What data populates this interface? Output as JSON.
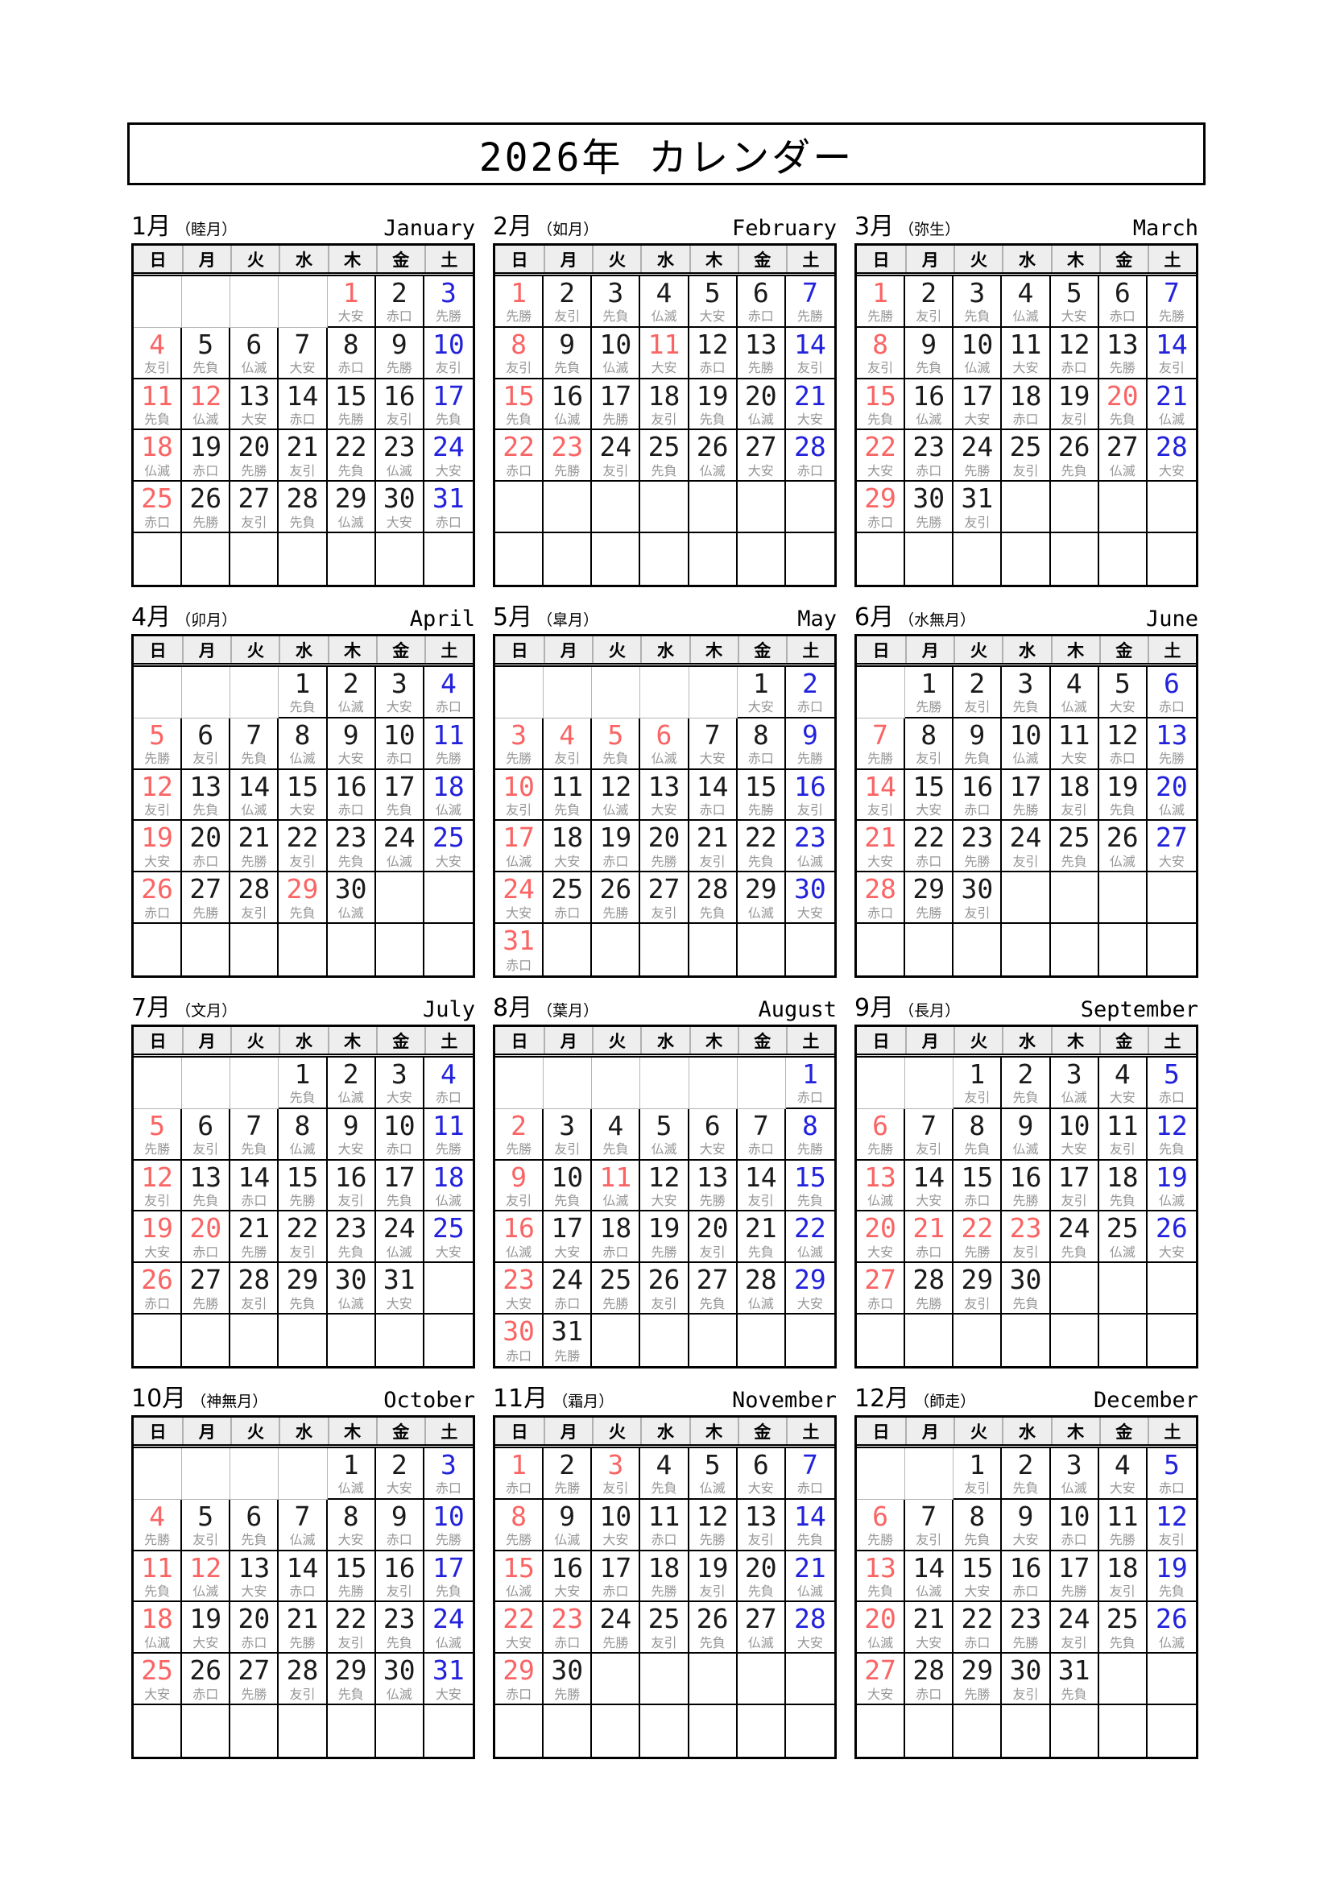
{
  "title": "2026年 カレンダー",
  "colors": {
    "red": "#fa6464",
    "blue": "#2222dd",
    "rokuyo_gray": "#969696",
    "header_bg": "#eeeeee",
    "border": "#000000"
  },
  "day_headers": [
    "日",
    "月",
    "火",
    "水",
    "木",
    "金",
    "土"
  ],
  "weeks_per_month": 6,
  "months": [
    {
      "jp": "1月",
      "wafu": "（睦月）",
      "en": "January",
      "first_dow": 4,
      "days": 31,
      "holidays": [
        1,
        12
      ],
      "rokuyo": [
        "大安",
        "赤口",
        "先勝",
        "友引",
        "先負",
        "仏滅",
        "大安",
        "赤口",
        "先勝",
        "友引",
        "先負",
        "仏滅",
        "大安",
        "赤口",
        "先勝",
        "友引",
        "先負",
        "仏滅",
        "赤口",
        "先勝",
        "友引",
        "先負",
        "仏滅",
        "大安",
        "赤口",
        "先勝",
        "友引",
        "先負",
        "仏滅",
        "大安",
        "赤口"
      ]
    },
    {
      "jp": "2月",
      "wafu": "（如月）",
      "en": "February",
      "first_dow": 0,
      "days": 28,
      "holidays": [
        11,
        23
      ],
      "rokuyo": [
        "先勝",
        "友引",
        "先負",
        "仏滅",
        "大安",
        "赤口",
        "先勝",
        "友引",
        "先負",
        "仏滅",
        "大安",
        "赤口",
        "先勝",
        "友引",
        "先負",
        "仏滅",
        "先勝",
        "友引",
        "先負",
        "仏滅",
        "大安",
        "赤口",
        "先勝",
        "友引",
        "先負",
        "仏滅",
        "大安",
        "赤口"
      ]
    },
    {
      "jp": "3月",
      "wafu": "（弥生）",
      "en": "March",
      "first_dow": 0,
      "days": 31,
      "holidays": [
        20
      ],
      "rokuyo": [
        "先勝",
        "友引",
        "先負",
        "仏滅",
        "大安",
        "赤口",
        "先勝",
        "友引",
        "先負",
        "仏滅",
        "大安",
        "赤口",
        "先勝",
        "友引",
        "先負",
        "仏滅",
        "大安",
        "赤口",
        "友引",
        "先負",
        "仏滅",
        "大安",
        "赤口",
        "先勝",
        "友引",
        "先負",
        "仏滅",
        "大安",
        "赤口",
        "先勝",
        "友引"
      ]
    },
    {
      "jp": "4月",
      "wafu": "（卯月）",
      "en": "April",
      "first_dow": 3,
      "days": 30,
      "holidays": [
        29
      ],
      "rokuyo": [
        "先負",
        "仏滅",
        "大安",
        "赤口",
        "先勝",
        "友引",
        "先負",
        "仏滅",
        "大安",
        "赤口",
        "先勝",
        "友引",
        "先負",
        "仏滅",
        "大安",
        "赤口",
        "先負",
        "仏滅",
        "大安",
        "赤口",
        "先勝",
        "友引",
        "先負",
        "仏滅",
        "大安",
        "赤口",
        "先勝",
        "友引",
        "先負",
        "仏滅"
      ]
    },
    {
      "jp": "5月",
      "wafu": "（皐月）",
      "en": "May",
      "first_dow": 5,
      "days": 31,
      "holidays": [
        3,
        4,
        5,
        6
      ],
      "rokuyo": [
        "大安",
        "赤口",
        "先勝",
        "友引",
        "先負",
        "仏滅",
        "大安",
        "赤口",
        "先勝",
        "友引",
        "先負",
        "仏滅",
        "大安",
        "赤口",
        "先勝",
        "友引",
        "仏滅",
        "大安",
        "赤口",
        "先勝",
        "友引",
        "先負",
        "仏滅",
        "大安",
        "赤口",
        "先勝",
        "友引",
        "先負",
        "仏滅",
        "大安",
        "赤口"
      ]
    },
    {
      "jp": "6月",
      "wafu": "（水無月）",
      "en": "June",
      "first_dow": 1,
      "days": 30,
      "holidays": [],
      "rokuyo": [
        "先勝",
        "友引",
        "先負",
        "仏滅",
        "大安",
        "赤口",
        "先勝",
        "友引",
        "先負",
        "仏滅",
        "大安",
        "赤口",
        "先勝",
        "友引",
        "大安",
        "赤口",
        "先勝",
        "友引",
        "先負",
        "仏滅",
        "大安",
        "赤口",
        "先勝",
        "友引",
        "先負",
        "仏滅",
        "大安",
        "赤口",
        "先勝",
        "友引"
      ]
    },
    {
      "jp": "7月",
      "wafu": "（文月）",
      "en": "July",
      "first_dow": 3,
      "days": 31,
      "holidays": [
        20
      ],
      "rokuyo": [
        "先負",
        "仏滅",
        "大安",
        "赤口",
        "先勝",
        "友引",
        "先負",
        "仏滅",
        "大安",
        "赤口",
        "先勝",
        "友引",
        "先負",
        "赤口",
        "先勝",
        "友引",
        "先負",
        "仏滅",
        "大安",
        "赤口",
        "先勝",
        "友引",
        "先負",
        "仏滅",
        "大安",
        "赤口",
        "先勝",
        "友引",
        "先負",
        "仏滅",
        "大安"
      ]
    },
    {
      "jp": "8月",
      "wafu": "（葉月）",
      "en": "August",
      "first_dow": 6,
      "days": 31,
      "holidays": [
        11
      ],
      "rokuyo": [
        "赤口",
        "先勝",
        "友引",
        "先負",
        "仏滅",
        "大安",
        "赤口",
        "先勝",
        "友引",
        "先負",
        "仏滅",
        "大安",
        "先勝",
        "友引",
        "先負",
        "仏滅",
        "大安",
        "赤口",
        "先勝",
        "友引",
        "先負",
        "仏滅",
        "大安",
        "赤口",
        "先勝",
        "友引",
        "先負",
        "仏滅",
        "大安",
        "赤口",
        "先勝"
      ]
    },
    {
      "jp": "9月",
      "wafu": "（長月）",
      "en": "September",
      "first_dow": 2,
      "days": 30,
      "holidays": [
        21,
        22,
        23
      ],
      "rokuyo": [
        "友引",
        "先負",
        "仏滅",
        "大安",
        "赤口",
        "先勝",
        "友引",
        "先負",
        "仏滅",
        "大安",
        "友引",
        "先負",
        "仏滅",
        "大安",
        "赤口",
        "先勝",
        "友引",
        "先負",
        "仏滅",
        "大安",
        "赤口",
        "先勝",
        "友引",
        "先負",
        "仏滅",
        "大安",
        "赤口",
        "先勝",
        "友引",
        "先負"
      ]
    },
    {
      "jp": "10月",
      "wafu": "（神無月）",
      "en": "October",
      "first_dow": 4,
      "days": 31,
      "holidays": [
        12
      ],
      "rokuyo": [
        "仏滅",
        "大安",
        "赤口",
        "先勝",
        "友引",
        "先負",
        "仏滅",
        "大安",
        "赤口",
        "先勝",
        "先負",
        "仏滅",
        "大安",
        "赤口",
        "先勝",
        "友引",
        "先負",
        "仏滅",
        "大安",
        "赤口",
        "先勝",
        "友引",
        "先負",
        "仏滅",
        "大安",
        "赤口",
        "先勝",
        "友引",
        "先負",
        "仏滅",
        "大安"
      ]
    },
    {
      "jp": "11月",
      "wafu": "（霜月）",
      "en": "November",
      "first_dow": 0,
      "days": 30,
      "holidays": [
        3,
        23
      ],
      "rokuyo": [
        "赤口",
        "先勝",
        "友引",
        "先負",
        "仏滅",
        "大安",
        "赤口",
        "先勝",
        "仏滅",
        "大安",
        "赤口",
        "先勝",
        "友引",
        "先負",
        "仏滅",
        "大安",
        "赤口",
        "先勝",
        "友引",
        "先負",
        "仏滅",
        "大安",
        "赤口",
        "先勝",
        "友引",
        "先負",
        "仏滅",
        "大安",
        "赤口",
        "先勝"
      ]
    },
    {
      "jp": "12月",
      "wafu": "（師走）",
      "en": "December",
      "first_dow": 2,
      "days": 31,
      "holidays": [],
      "rokuyo": [
        "友引",
        "先負",
        "仏滅",
        "大安",
        "赤口",
        "先勝",
        "友引",
        "先負",
        "大安",
        "赤口",
        "先勝",
        "友引",
        "先負",
        "仏滅",
        "大安",
        "赤口",
        "先勝",
        "友引",
        "先負",
        "仏滅",
        "大安",
        "赤口",
        "先勝",
        "友引",
        "先負",
        "仏滅",
        "大安",
        "赤口",
        "先勝",
        "友引",
        "先負"
      ]
    }
  ]
}
